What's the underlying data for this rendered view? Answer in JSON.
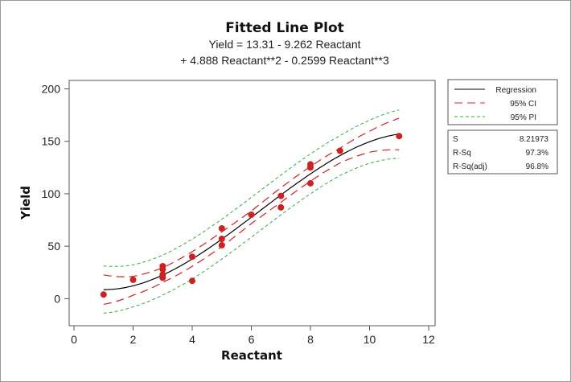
{
  "chart_data": {
    "type": "scatter",
    "title": "Fitted Line Plot",
    "equation_line1": "Yield  =  13.31 - 9.262 Reactant",
    "equation_line2": "+ 4.888 Reactant**2 - 0.2599 Reactant**3",
    "xlabel": "Reactant",
    "ylabel": "Yield",
    "xlim": [
      0,
      12
    ],
    "ylim": [
      -25,
      205
    ],
    "xticks": [
      0,
      2,
      4,
      6,
      8,
      10,
      12
    ],
    "yticks": [
      0,
      50,
      100,
      150,
      200
    ],
    "coefficients": [
      13.31,
      -9.262,
      4.888,
      -0.2599
    ],
    "fit_range": [
      1,
      11
    ],
    "ci_halfwidth": [
      [
        1,
        14
      ],
      [
        2,
        9
      ],
      [
        3,
        7
      ],
      [
        4,
        7
      ],
      [
        5,
        7
      ],
      [
        6,
        6
      ],
      [
        7,
        7
      ],
      [
        8,
        7
      ],
      [
        9,
        7
      ],
      [
        10,
        10
      ],
      [
        11,
        15
      ]
    ],
    "pi_halfwidth": [
      [
        1,
        22.5
      ],
      [
        2,
        20
      ],
      [
        3,
        19
      ],
      [
        4,
        19
      ],
      [
        5,
        19
      ],
      [
        6,
        19
      ],
      [
        7,
        19
      ],
      [
        8,
        19
      ],
      [
        9,
        19
      ],
      [
        10,
        20.5
      ],
      [
        11,
        23
      ]
    ],
    "points": [
      [
        1,
        4
      ],
      [
        2,
        18
      ],
      [
        3,
        20
      ],
      [
        3,
        23
      ],
      [
        3,
        28
      ],
      [
        3,
        31
      ],
      [
        4,
        17
      ],
      [
        4,
        40
      ],
      [
        5,
        51
      ],
      [
        5,
        57
      ],
      [
        5,
        67
      ],
      [
        6,
        80
      ],
      [
        7,
        87
      ],
      [
        7,
        98
      ],
      [
        8,
        110
      ],
      [
        8,
        125
      ],
      [
        8,
        128
      ],
      [
        9,
        141
      ],
      [
        11,
        155
      ]
    ],
    "legend": {
      "position": "right",
      "entries": [
        {
          "label": "Regression",
          "style": "solid",
          "color": "#000000"
        },
        {
          "label": "95% CI",
          "style": "long-dash",
          "color": "#cc2222"
        },
        {
          "label": "95% PI",
          "style": "short-dash",
          "color": "#33aa44"
        }
      ]
    },
    "stats": [
      {
        "name": "S",
        "value": "8.21973"
      },
      {
        "name": "R-Sq",
        "value": "97.3%"
      },
      {
        "name": "R-Sq(adj)",
        "value": "96.8%"
      }
    ],
    "colors": {
      "points": "#cc2222",
      "regression": "#000000",
      "ci": "#cc2222",
      "pi": "#33aa44"
    },
    "grid": false
  }
}
